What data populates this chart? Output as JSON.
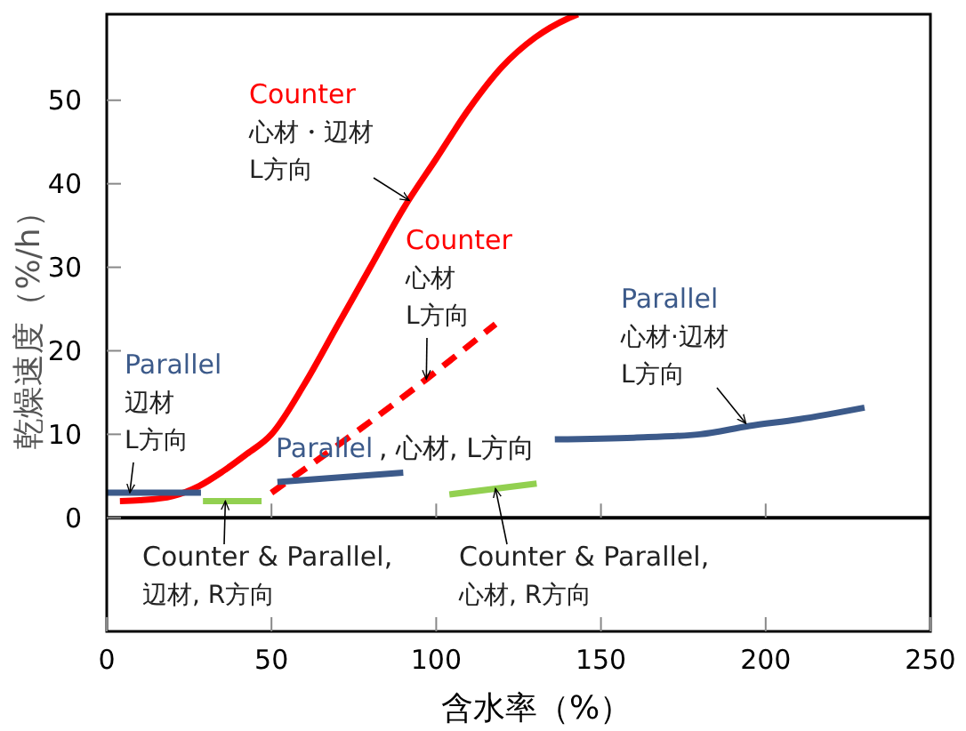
{
  "chart_data": {
    "type": "line",
    "xlabel": "含水率（%）",
    "ylabel": "乾燥速度（%/h）",
    "xlim": [
      0,
      250
    ],
    "ylim": [
      -13.6,
      60.3
    ],
    "xticks": [
      0,
      50,
      100,
      150,
      200,
      250
    ],
    "yticks": [
      0,
      10,
      20,
      30,
      40,
      50
    ],
    "grid": false,
    "marker": "none",
    "series": [
      {
        "color": "#ff0000",
        "line_style": "solid",
        "x": [
          4,
          10,
          20,
          28,
          35,
          42,
          50,
          60,
          70,
          80,
          90,
          100,
          110,
          120,
          130,
          140,
          143
        ],
        "values": [
          2,
          2.1,
          2.6,
          3.8,
          5.5,
          7.5,
          10,
          16,
          23,
          30,
          37,
          43,
          49,
          54,
          57.5,
          59.8,
          60.3
        ]
      },
      {
        "color": "#ff0000",
        "line_style": "dashed",
        "x": [
          50,
          97,
          118
        ],
        "values": [
          3,
          16.6,
          23.2
        ]
      },
      {
        "color": "#3c5a8a",
        "line_style": "solid",
        "x": [
          0,
          28.6
        ],
        "values": [
          3,
          3
        ]
      },
      {
        "name": "Parallel",
        "color": "#3c5a8a",
        "line_style": "solid",
        "x": [
          51.8,
          90
        ],
        "values": [
          4.3,
          5.4
        ]
      },
      {
        "color": "#3c5a8a",
        "line_style": "solid",
        "x": [
          136,
          160,
          180,
          195,
          210,
          230
        ],
        "values": [
          9.4,
          9.6,
          10,
          11,
          11.8,
          13.2
        ]
      },
      {
        "color": "#92d050",
        "line_style": "solid",
        "x": [
          29.2,
          47
        ],
        "values": [
          2,
          2
        ]
      },
      {
        "color": "#92d050",
        "line_style": "solid",
        "x": [
          104,
          130.5
        ],
        "values": [
          2.8,
          4.1
        ]
      }
    ],
    "ref_lines": [
      {
        "axis": "y",
        "value": 0,
        "color": "#000000"
      }
    ],
    "annotations": [
      {
        "text": "Counter\n心材・辺材\nL方向",
        "x": 91.8,
        "y": 38
      },
      {
        "text": "Counter\n心材\nL方向",
        "x": 97,
        "y": 16.6
      },
      {
        "text": "Parallel\n辺材\nL方向",
        "x": 7,
        "y": 3
      },
      ", 心材, L方向",
      {
        "text": "Parallel\n心材·辺材\nL方向",
        "x": 194,
        "y": 11.3
      },
      {
        "text": "Counter & Parallel,\n辺材, R方向",
        "x": 36,
        "y": 2
      },
      {
        "text": "Counter & Parallel,\n心材, R方向",
        "x": 118,
        "y": 3.5
      }
    ]
  }
}
